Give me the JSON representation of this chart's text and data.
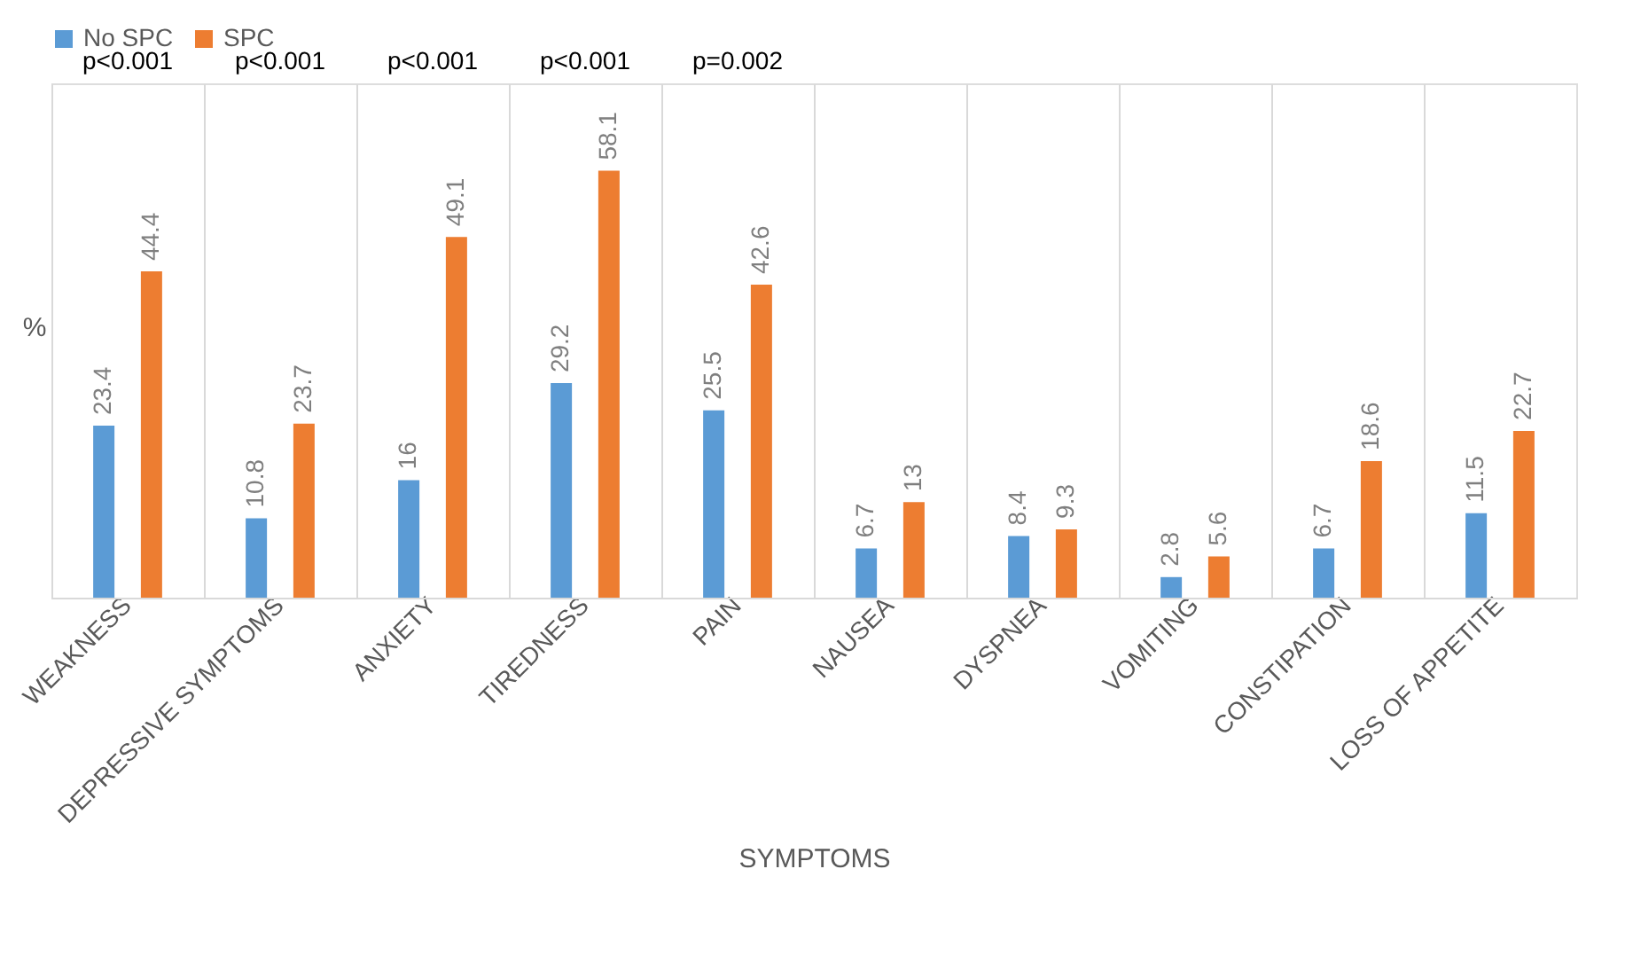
{
  "chart_data": {
    "type": "bar",
    "xlabel": "SYMPTOMS",
    "ylabel": "%",
    "categories": [
      "WEAKNESS",
      "DEPRESSIVE SYMPTOMS",
      "ANXIETY",
      "TIREDNESS",
      "PAIN",
      "NAUSEA",
      "DYSPNEA",
      "VOMITING",
      "CONSTIPATION",
      "LOSS OF APPETITE"
    ],
    "series": [
      {
        "name": "No SPC",
        "color": "#5b9bd5",
        "values": [
          23.4,
          10.8,
          16,
          29.2,
          25.5,
          6.7,
          8.4,
          2.8,
          6.7,
          11.5
        ]
      },
      {
        "name": "SPC",
        "color": "#ed7d31",
        "values": [
          44.4,
          23.7,
          49.1,
          58.1,
          42.6,
          13,
          9.3,
          5.6,
          18.6,
          22.7
        ]
      }
    ],
    "ylim": [
      0,
      70
    ],
    "tick_labels": "x",
    "data_labels": true,
    "grid": "x",
    "legend": "top",
    "annotations": [
      "p<0.001",
      "p<0.001",
      "p<0.001",
      "p<0.001",
      "p=0.002"
    ]
  }
}
